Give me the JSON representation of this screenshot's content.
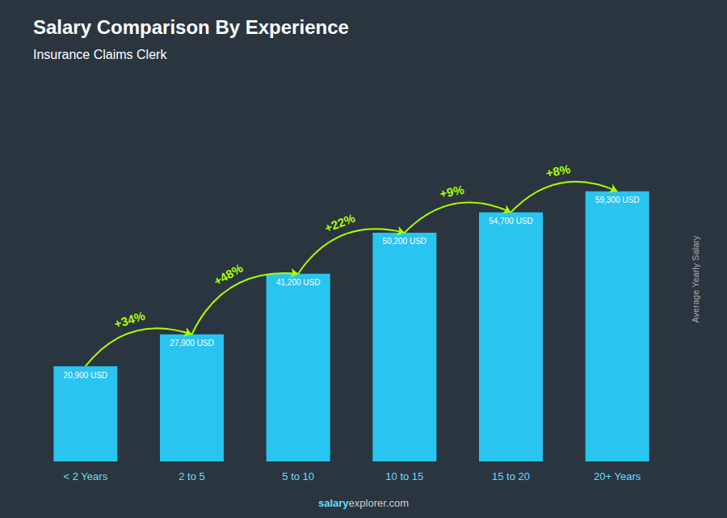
{
  "chart_data": {
    "type": "bar",
    "title": "Salary Comparison By Experience",
    "subtitle": "Insurance Claims Clerk",
    "categories": [
      "< 2 Years",
      "2 to 5",
      "5 to 10",
      "10 to 15",
      "15 to 20",
      "20+ Years"
    ],
    "values": [
      20900,
      27900,
      41200,
      50200,
      54700,
      59300
    ],
    "value_labels": [
      "20,900 USD",
      "27,900 USD",
      "41,200 USD",
      "50,200 USD",
      "54,700 USD",
      "59,300 USD"
    ],
    "data_labels": true,
    "color": "#29c4f0",
    "ylabel": "Average Yearly Salary",
    "ylim": [
      0,
      80000
    ],
    "tick_labels": "x",
    "grid": false,
    "annotations": [
      "+34%",
      "+48%",
      "+22%",
      "+9%",
      "+8%"
    ],
    "footer": [
      "salary",
      "explorer.com"
    ]
  }
}
